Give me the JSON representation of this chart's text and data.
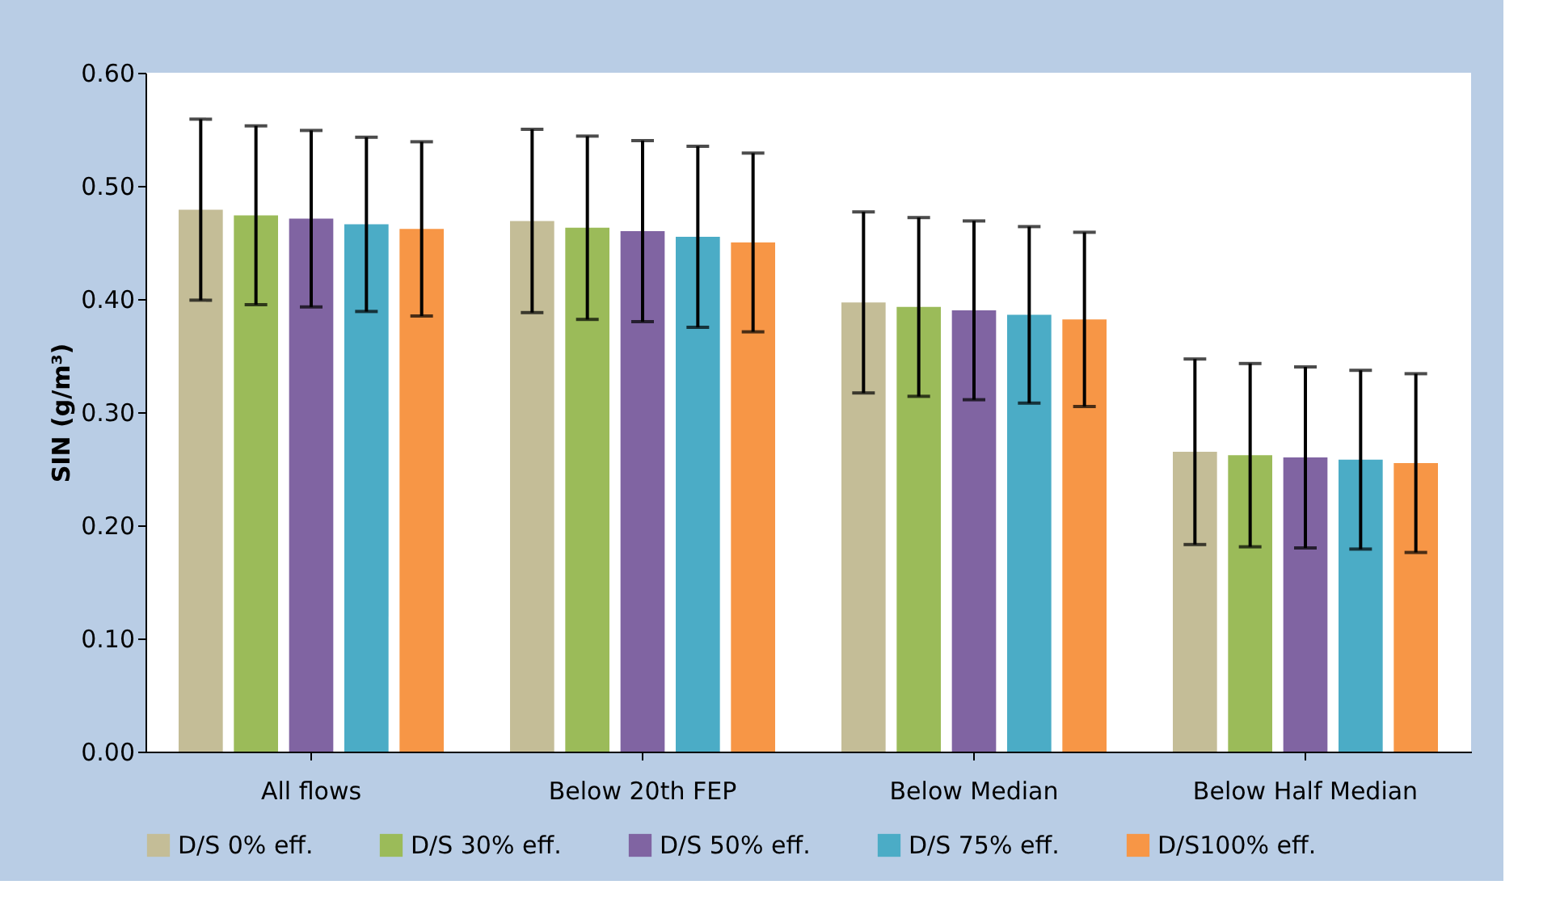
{
  "chart_data": {
    "type": "bar",
    "ylabel": "SIN (g/m³)",
    "categories": [
      "All flows",
      "Below 20th FEP",
      "Below Median",
      "Below Half Median"
    ],
    "series": [
      {
        "name": "D/S 0% eff.",
        "color": "#c4bd97",
        "values": [
          0.479,
          0.469,
          0.397,
          0.265
        ],
        "errors": [
          0.08,
          0.081,
          0.08,
          0.082
        ]
      },
      {
        "name": "D/S 30% eff.",
        "color": "#9bbb59",
        "values": [
          0.474,
          0.463,
          0.393,
          0.262
        ],
        "errors": [
          0.079,
          0.081,
          0.079,
          0.081
        ]
      },
      {
        "name": "D/S 50% eff.",
        "color": "#8064a2",
        "values": [
          0.471,
          0.46,
          0.39,
          0.26
        ],
        "errors": [
          0.078,
          0.08,
          0.079,
          0.08
        ]
      },
      {
        "name": "D/S 75% eff.",
        "color": "#4bacc6",
        "values": [
          0.466,
          0.455,
          0.386,
          0.258
        ],
        "errors": [
          0.077,
          0.08,
          0.078,
          0.079
        ]
      },
      {
        "name": "D/S100% eff.",
        "color": "#f79646",
        "values": [
          0.462,
          0.45,
          0.382,
          0.255
        ],
        "errors": [
          0.077,
          0.079,
          0.077,
          0.079
        ]
      }
    ],
    "ylim": [
      0,
      0.6
    ],
    "yticks": [
      {
        "value": 0,
        "label": "0.00"
      },
      {
        "value": 0.1,
        "label": "0.10"
      },
      {
        "value": 0.2,
        "label": "0.20"
      },
      {
        "value": 0.3,
        "label": "0.30"
      },
      {
        "value": 0.4,
        "label": "0.40"
      },
      {
        "value": 0.5,
        "label": "0.50"
      },
      {
        "value": 0.6,
        "label": "0.60"
      }
    ],
    "grid": false,
    "legend": "bottom"
  }
}
